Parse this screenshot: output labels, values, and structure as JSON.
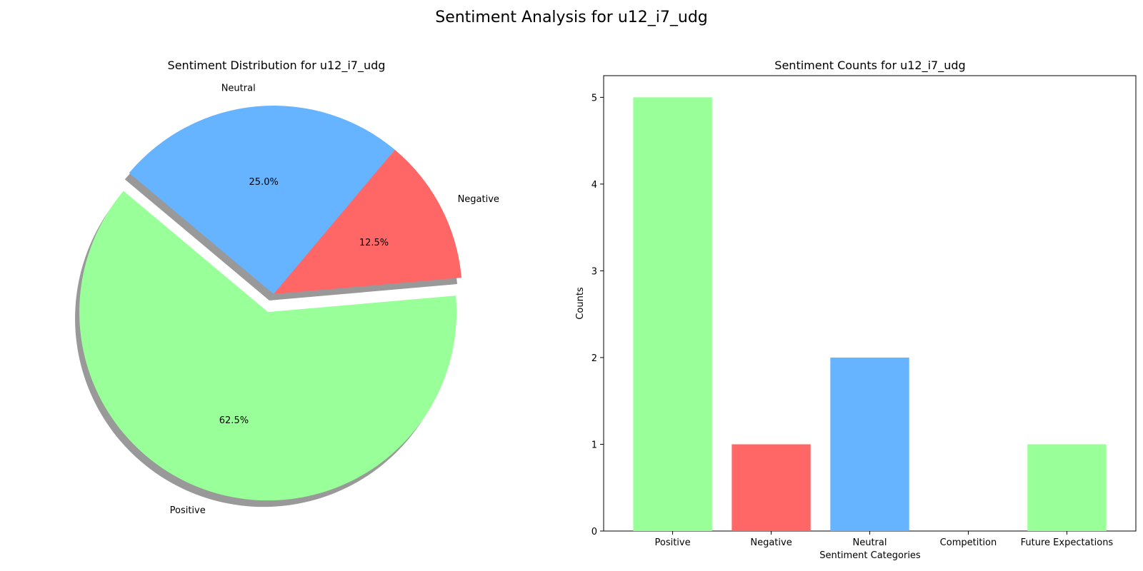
{
  "figure_title": "Sentiment Analysis for u12_i7_udg",
  "chart_data": [
    {
      "type": "pie",
      "title": "Sentiment Distribution for u12_i7_udg",
      "shadow": true,
      "slices": [
        {
          "label": "Positive",
          "value": 62.5,
          "pct_label": "62.5%",
          "color": "#99ff99",
          "exploded": true
        },
        {
          "label": "Negative",
          "value": 12.5,
          "pct_label": "12.5%",
          "color": "#ff6666",
          "exploded": false
        },
        {
          "label": "Neutral",
          "value": 25.0,
          "pct_label": "25.0%",
          "color": "#66b3ff",
          "exploded": false
        }
      ]
    },
    {
      "type": "bar",
      "title": "Sentiment Counts for u12_i7_udg",
      "xlabel": "Sentiment Categories",
      "ylabel": "Counts",
      "categories": [
        "Positive",
        "Negative",
        "Neutral",
        "Competition",
        "Future Expectations"
      ],
      "values": [
        5,
        1,
        2,
        0,
        1
      ],
      "colors": [
        "#99ff99",
        "#ff6666",
        "#66b3ff",
        "#ffcc99",
        "#99ff99"
      ],
      "yticks": [
        0,
        1,
        2,
        3,
        4,
        5
      ],
      "ylim": [
        0,
        5.25
      ],
      "grid": false
    }
  ]
}
